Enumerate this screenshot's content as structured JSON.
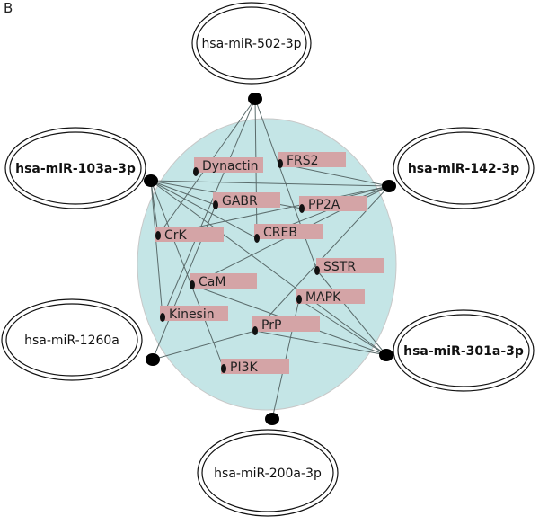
{
  "panel_label": "B",
  "colors": {
    "cluster": "#c4e5e6",
    "label_box": "#d4a4a6",
    "edge": "#5a6b6b"
  },
  "mirnas": [
    {
      "id": "m502",
      "label": "hsa-miR-502-3p",
      "bold": false
    },
    {
      "id": "m103",
      "label": "hsa-miR-103a-3p",
      "bold": true
    },
    {
      "id": "m142",
      "label": "hsa-miR-142-3p",
      "bold": true
    },
    {
      "id": "m1260",
      "label": "hsa-miR-1260a",
      "bold": false
    },
    {
      "id": "m301",
      "label": "hsa-miR-301a-3p",
      "bold": true
    },
    {
      "id": "m200",
      "label": "hsa-miR-200a-3p",
      "bold": false
    }
  ],
  "targets": [
    {
      "id": "Dynactin",
      "label": "Dynactin"
    },
    {
      "id": "FRS2",
      "label": "FRS2"
    },
    {
      "id": "GABR",
      "label": "GABR"
    },
    {
      "id": "PP2A",
      "label": "PP2A"
    },
    {
      "id": "CrK",
      "label": "CrK"
    },
    {
      "id": "CREB",
      "label": "CREB"
    },
    {
      "id": "SSTR",
      "label": "SSTR"
    },
    {
      "id": "CaM",
      "label": "CaM"
    },
    {
      "id": "MAPK",
      "label": "MAPK"
    },
    {
      "id": "Kinesin",
      "label": "Kinesin"
    },
    {
      "id": "PrP",
      "label": "PrP"
    },
    {
      "id": "PI3K",
      "label": "PI3K"
    }
  ],
  "edges": [
    [
      "m502",
      "CrK"
    ],
    [
      "m502",
      "Kinesin"
    ],
    [
      "m502",
      "CREB"
    ],
    [
      "m502",
      "SSTR"
    ],
    [
      "m103",
      "m142"
    ],
    [
      "m103",
      "GABR"
    ],
    [
      "m103",
      "PP2A"
    ],
    [
      "m103",
      "CREB"
    ],
    [
      "m103",
      "CrK"
    ],
    [
      "m103",
      "Kinesin"
    ],
    [
      "m103",
      "PI3K"
    ],
    [
      "m103",
      "m301"
    ],
    [
      "m142",
      "FRS2"
    ],
    [
      "m142",
      "PP2A"
    ],
    [
      "m142",
      "CREB"
    ],
    [
      "m142",
      "CaM"
    ],
    [
      "m142",
      "PrP"
    ],
    [
      "m142",
      "CrK"
    ],
    [
      "m1260",
      "PrP"
    ],
    [
      "m1260",
      "GABR"
    ],
    [
      "m301",
      "SSTR"
    ],
    [
      "m301",
      "MAPK"
    ],
    [
      "m301",
      "PrP"
    ],
    [
      "m301",
      "CaM"
    ],
    [
      "m200",
      "MAPK"
    ]
  ]
}
